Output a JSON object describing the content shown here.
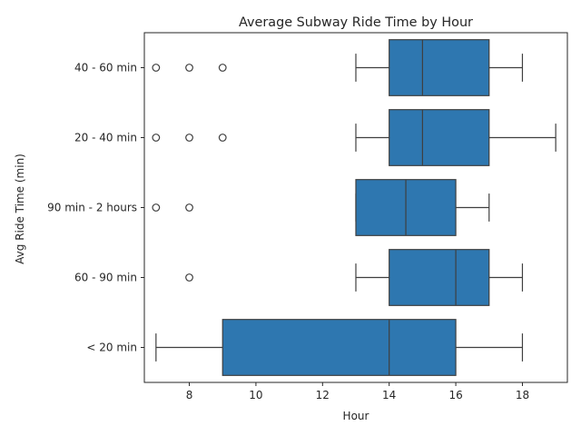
{
  "chart_data": {
    "type": "boxplot",
    "orientation": "horizontal",
    "title": "Average Subway Ride Time by Hour",
    "xlabel": "Hour",
    "ylabel": "Avg Ride Time (min)",
    "xlim": [
      6.65,
      19.35
    ],
    "xticks": [
      8,
      10,
      12,
      14,
      16,
      18
    ],
    "grid": false,
    "box_color": "#2e77b0",
    "line_color": "#3f3f3f",
    "categories": [
      "40 - 60 min",
      "20 - 40 min",
      "90 min - 2 hours",
      "60 - 90 min",
      "< 20 min"
    ],
    "boxes": [
      {
        "category": "40 - 60 min",
        "whisker_low": 13,
        "q1": 14,
        "median": 15,
        "q3": 17,
        "whisker_high": 18,
        "outliers": [
          7,
          8,
          9
        ]
      },
      {
        "category": "20 - 40 min",
        "whisker_low": 13,
        "q1": 14,
        "median": 15,
        "q3": 17,
        "whisker_high": 19,
        "outliers": [
          7,
          8,
          9
        ]
      },
      {
        "category": "90 min - 2 hours",
        "whisker_low": 13,
        "q1": 13,
        "median": 14.5,
        "q3": 16,
        "whisker_high": 17,
        "outliers": [
          7,
          8
        ]
      },
      {
        "category": "60 - 90 min",
        "whisker_low": 13,
        "q1": 14,
        "median": 16,
        "q3": 17,
        "whisker_high": 18,
        "outliers": [
          8
        ]
      },
      {
        "category": "< 20 min",
        "whisker_low": 7,
        "q1": 9,
        "median": 14,
        "q3": 16,
        "whisker_high": 18,
        "outliers": []
      }
    ]
  }
}
